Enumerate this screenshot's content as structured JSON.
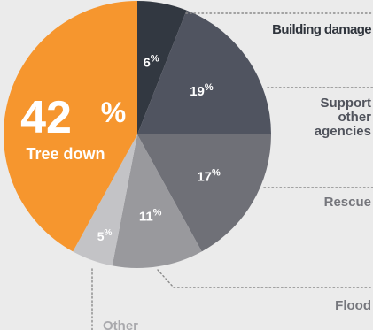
{
  "chart_data": {
    "type": "pie",
    "title": "",
    "slices": [
      {
        "label": "Building damage",
        "value": 6,
        "display": "6",
        "color": "#323841"
      },
      {
        "label": "Support other agencies",
        "value": 19,
        "display": "19",
        "color": "#505460"
      },
      {
        "label": "Rescue",
        "value": 17,
        "display": "17",
        "color": "#6f7077"
      },
      {
        "label": "Flood",
        "value": 11,
        "display": "11",
        "color": "#99999d"
      },
      {
        "label": "Other",
        "value": 5,
        "display": "5",
        "color": "#c3c3c6"
      },
      {
        "label": "Tree down",
        "value": 42,
        "display": "42",
        "color": "#f6962e"
      }
    ],
    "percent_symbol": "%",
    "start_angle_deg": 0,
    "direction": "clockwise",
    "legend_placement": "callout labels"
  },
  "colors": {
    "background": "#ebebeb",
    "callout_dots": "#8a8a8a",
    "label_dark": "#2f343c",
    "label_mid": "#50535c",
    "label_light": "#75767c",
    "label_faint": "#a9a9ad",
    "accent": "#f6962e"
  }
}
